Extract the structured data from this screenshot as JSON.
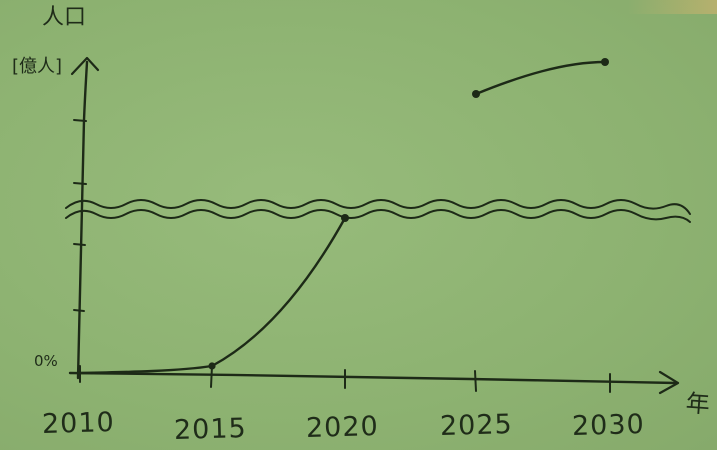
{
  "axis_text": {
    "y_title": "人口",
    "y_unit": "[億人]",
    "x_title": "年",
    "origin_label": "0%"
  },
  "chart_data": {
    "type": "line",
    "title": "",
    "xlabel": "年",
    "ylabel": "人口 [億人]",
    "x_ticks": [
      "2010",
      "2015",
      "2020",
      "2025",
      "2030"
    ],
    "xlim": [
      2010,
      2030
    ],
    "axis_break": true,
    "series": [
      {
        "segment": "below-break",
        "points": [
          {
            "x": 2010,
            "y": 0
          },
          {
            "x": 2015,
            "y": 0.3
          },
          {
            "x": 2020,
            "y": 8
          }
        ]
      },
      {
        "segment": "above-break",
        "points": [
          {
            "x": 2025,
            "y": 14
          },
          {
            "x": 2030,
            "y": 15.5
          }
        ]
      }
    ],
    "ink_color": "#1d2a17",
    "board_color": "#8fb573"
  }
}
